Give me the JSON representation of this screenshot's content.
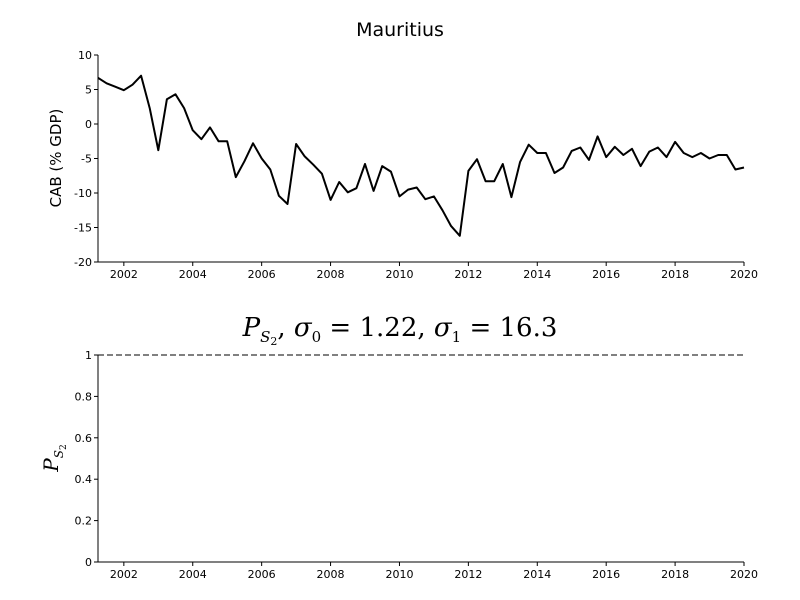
{
  "chart_data": [
    {
      "type": "line",
      "title": "Mauritius",
      "xlabel": "",
      "ylabel": "CAB (% GDP)",
      "xlim": [
        2001.25,
        2020.0
      ],
      "ylim": [
        -20,
        10
      ],
      "xticks": [
        "2002",
        "2004",
        "2006",
        "2008",
        "2010",
        "2012",
        "2014",
        "2016",
        "2018",
        "2020"
      ],
      "yticks": [
        "10",
        "5",
        "0",
        "-5",
        "-10",
        "-15",
        "-20"
      ],
      "grid": false,
      "series": [
        {
          "x": [
            2001.25,
            2001.5,
            2001.75,
            2002.0,
            2002.25,
            2002.5,
            2002.75,
            2003.0,
            2003.25,
            2003.5,
            2003.75,
            2004.0,
            2004.25,
            2004.5,
            2004.75,
            2005.0,
            2005.25,
            2005.5,
            2005.75,
            2006.0,
            2006.25,
            2006.5,
            2006.75,
            2007.0,
            2007.25,
            2007.5,
            2007.75,
            2008.0,
            2008.25,
            2008.5,
            2008.75,
            2009.0,
            2009.25,
            2009.5,
            2009.75,
            2010.0,
            2010.25,
            2010.5,
            2010.75,
            2011.0,
            2011.25,
            2011.5,
            2011.75,
            2012.0,
            2012.25,
            2012.5,
            2012.75,
            2013.0,
            2013.25,
            2013.5,
            2013.75,
            2014.0,
            2014.25,
            2014.5,
            2014.75,
            2015.0,
            2015.25,
            2015.5,
            2015.75,
            2016.0,
            2016.25,
            2016.5,
            2016.75,
            2017.0,
            2017.25,
            2017.5,
            2017.75,
            2018.0,
            2018.25,
            2018.5,
            2018.75,
            2019.0,
            2019.25,
            2019.5,
            2019.75,
            2020.0
          ],
          "y": [
            6.7,
            5.9,
            5.4,
            4.9,
            5.7,
            7.0,
            2.3,
            -3.8,
            3.6,
            4.3,
            2.3,
            -0.9,
            -2.2,
            -0.5,
            -2.5,
            -2.5,
            -7.7,
            -5.4,
            -2.8,
            -5.0,
            -6.6,
            -10.4,
            -11.6,
            -2.9,
            -4.7,
            -5.9,
            -7.2,
            -11.0,
            -8.4,
            -9.9,
            -9.3,
            -5.8,
            -9.7,
            -6.1,
            -6.9,
            -10.5,
            -9.5,
            -9.2,
            -10.9,
            -10.5,
            -12.5,
            -14.8,
            -16.2,
            -6.8,
            -5.1,
            -8.3,
            -8.3,
            -5.8,
            -10.6,
            -5.5,
            -3.0,
            -4.2,
            -4.2,
            -7.1,
            -6.3,
            -3.9,
            -3.4,
            -5.2,
            -1.8,
            -4.8,
            -3.3,
            -4.5,
            -3.6,
            -6.1,
            -4.0,
            -3.4,
            -4.8,
            -2.6,
            -4.2,
            -4.8,
            -4.2,
            -5.0,
            -4.5,
            -4.5,
            -6.6,
            -6.3
          ]
        }
      ]
    },
    {
      "type": "line",
      "title_parts": {
        "p": "P",
        "sub1": "S",
        "sub2": "2",
        "s0": "σ",
        "s0sub": "0",
        "s0val": " = 1.22, ",
        "s1": "σ",
        "s1sub": "1",
        "s1val": " = 16.3"
      },
      "ylabel_parts": {
        "p": "P",
        "sub1": "S",
        "sub2": "2"
      },
      "xlim": [
        2001.25,
        2020.0
      ],
      "ylim": [
        0,
        1
      ],
      "xticks": [
        "2002",
        "2004",
        "2006",
        "2008",
        "2010",
        "2012",
        "2014",
        "2016",
        "2018",
        "2020"
      ],
      "yticks": [
        "1",
        "0.8",
        "0.6",
        "0.4",
        "0.2",
        "0"
      ],
      "grid": false,
      "series": [
        {
          "style": "dashed",
          "x": [
            2001.25,
            2020.0
          ],
          "y": [
            1,
            1
          ]
        }
      ]
    }
  ]
}
